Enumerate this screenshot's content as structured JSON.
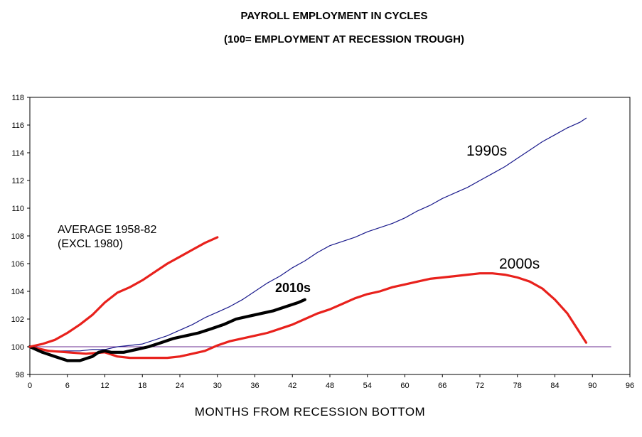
{
  "chart_data": {
    "type": "line",
    "title": "PAYROLL EMPLOYMENT IN CYCLES",
    "subtitle": "(100= EMPLOYMENT AT RECESSION TROUGH)",
    "xlabel": "MONTHS FROM RECESSION BOTTOM",
    "ylabel": "",
    "xlim": [
      0,
      96
    ],
    "ylim": [
      98,
      118
    ],
    "xticks": [
      0,
      6,
      12,
      18,
      24,
      30,
      36,
      42,
      48,
      54,
      60,
      66,
      72,
      78,
      84,
      90,
      96
    ],
    "yticks": [
      98,
      100,
      102,
      104,
      106,
      108,
      110,
      112,
      114,
      116,
      118
    ],
    "grid": false,
    "reference_line": {
      "name": "100",
      "y": 100,
      "x": [
        0,
        93
      ],
      "color": "#6b2c91"
    },
    "series": [
      {
        "name": "1990s",
        "color": "#1a1a8c",
        "x": [
          0,
          2,
          4,
          6,
          8,
          10,
          12,
          14,
          16,
          18,
          20,
          22,
          24,
          26,
          28,
          30,
          32,
          34,
          36,
          38,
          40,
          42,
          44,
          46,
          48,
          50,
          52,
          54,
          56,
          58,
          60,
          62,
          64,
          66,
          68,
          70,
          72,
          74,
          76,
          78,
          80,
          82,
          84,
          86,
          88,
          89
        ],
        "values": [
          100,
          99.8,
          99.7,
          99.7,
          99.7,
          99.8,
          99.8,
          100,
          100.1,
          100.2,
          100.5,
          100.8,
          101.2,
          101.6,
          102.1,
          102.5,
          102.9,
          103.4,
          104.0,
          104.6,
          105.1,
          105.7,
          106.2,
          106.8,
          107.3,
          107.6,
          107.9,
          108.3,
          108.6,
          108.9,
          109.3,
          109.8,
          110.2,
          110.7,
          111.1,
          111.5,
          112.0,
          112.5,
          113.0,
          113.6,
          114.2,
          114.8,
          115.3,
          115.8,
          116.2,
          116.5
        ]
      },
      {
        "name": "2000s",
        "color": "#e8211c",
        "x": [
          0,
          3,
          6,
          9,
          12,
          14,
          16,
          18,
          20,
          22,
          24,
          26,
          28,
          30,
          32,
          34,
          36,
          38,
          40,
          42,
          44,
          46,
          48,
          50,
          52,
          54,
          56,
          58,
          60,
          62,
          64,
          66,
          68,
          70,
          72,
          74,
          76,
          78,
          80,
          82,
          84,
          86,
          88,
          89
        ],
        "values": [
          100,
          99.7,
          99.6,
          99.5,
          99.6,
          99.3,
          99.2,
          99.2,
          99.2,
          99.2,
          99.3,
          99.5,
          99.7,
          100.1,
          100.4,
          100.6,
          100.8,
          101.0,
          101.3,
          101.6,
          102.0,
          102.4,
          102.7,
          103.1,
          103.5,
          103.8,
          104.0,
          104.3,
          104.5,
          104.7,
          104.9,
          105.0,
          105.1,
          105.2,
          105.3,
          105.3,
          105.2,
          105.0,
          104.7,
          104.2,
          103.4,
          102.4,
          101.0,
          100.3
        ]
      },
      {
        "name": "2010s",
        "color": "#000000",
        "x": [
          0,
          2,
          4,
          6,
          8,
          10,
          11,
          12,
          13,
          15,
          17,
          19,
          21,
          23,
          25,
          27,
          29,
          31,
          33,
          35,
          37,
          39,
          41,
          43,
          44
        ],
        "values": [
          100,
          99.6,
          99.3,
          99.0,
          99.0,
          99.3,
          99.6,
          99.7,
          99.6,
          99.6,
          99.8,
          100.0,
          100.3,
          100.6,
          100.8,
          101.0,
          101.3,
          101.6,
          102.0,
          102.2,
          102.4,
          102.6,
          102.9,
          103.2,
          103.4
        ]
      },
      {
        "name": "AVERAGE 1958-82 (EXCL 1980)",
        "color": "#e8211c",
        "x": [
          0,
          2,
          4,
          6,
          8,
          10,
          12,
          14,
          16,
          18,
          20,
          22,
          24,
          26,
          28,
          30
        ],
        "values": [
          100,
          100.2,
          100.5,
          101.0,
          101.6,
          102.3,
          103.2,
          103.9,
          104.3,
          104.8,
          105.4,
          106.0,
          106.5,
          107.0,
          107.5,
          107.9
        ]
      }
    ],
    "annotations": [
      {
        "id": "a1990",
        "text": "1990s"
      },
      {
        "id": "a2000",
        "text": "2000s"
      },
      {
        "id": "a2010",
        "text": "2010s"
      },
      {
        "id": "avg1",
        "text": "AVERAGE 1958-82"
      },
      {
        "id": "avg2",
        "text": "(EXCL 1980)"
      }
    ]
  }
}
